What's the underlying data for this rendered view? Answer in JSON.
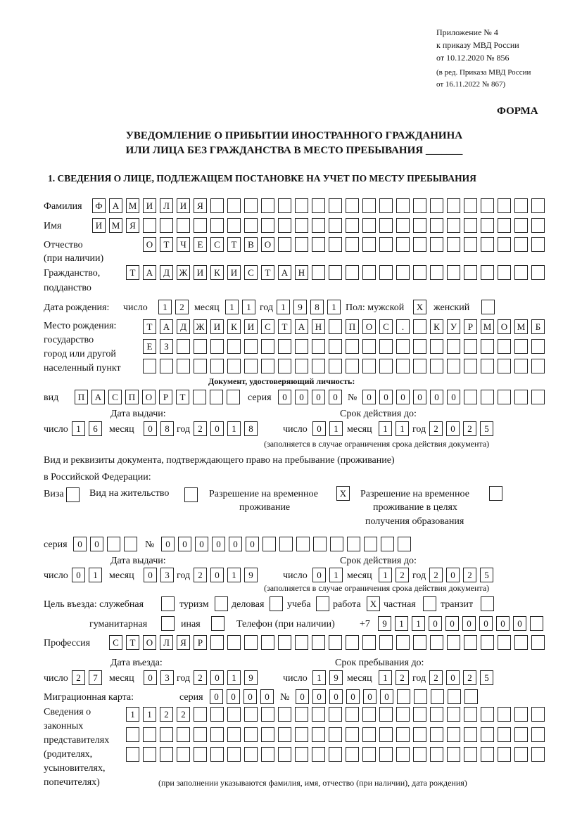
{
  "header": {
    "line1": "Приложение № 4",
    "line2": "к приказу МВД России",
    "line3": "от 10.12.2020 № 856",
    "line4": "(в ред. Приказа МВД России",
    "line5": "от 16.11.2022 № 867)",
    "forma": "ФОРМА",
    "title1": "УВЕДОМЛЕНИЕ О ПРИБЫТИИ ИНОСТРАННОГО ГРАЖДАНИНА",
    "title2": "ИЛИ ЛИЦА БЕЗ ГРАЖДАНСТВА В МЕСТО ПРЕБЫВАНИЯ _______",
    "section1": "1. СВЕДЕНИЯ О ЛИЦЕ, ПОДЛЕЖАЩЕМ ПОСТАНОВКЕ НА УЧЕТ ПО МЕСТУ ПРЕБЫВАНИЯ"
  },
  "labels": {
    "surname": "Фамилия",
    "name": "Имя",
    "patronymic": "Отчество",
    "patronymic2": "(при наличии)",
    "citizenship": "Гражданство,",
    "citizenship2": "подданство",
    "birth_date": "Дата рождения:",
    "day": "число",
    "month": "месяц",
    "year": "год",
    "sex": "Пол: мужской",
    "female": "женский",
    "birthplace1": "Место рождения:",
    "birthplace2": "государство",
    "birthplace3": "город или другой",
    "birthplace4": "населенный пункт",
    "id_doc": "Документ, удостоверяющий личность:",
    "kind": "вид",
    "series": "серия",
    "number": "№",
    "issue_date": "Дата выдачи:",
    "valid_until": "Срок действия до:",
    "validity_note": "(заполняется в случае ограничения срока действия документа)",
    "stay_doc1": "Вид и реквизиты документа, подтверждающего право на пребывание (проживание)",
    "stay_doc2": "в Российской Федерации:",
    "visa": "Виза",
    "residence": "Вид на жительство",
    "trp1": "Разрешение на временное",
    "trp2": "проживание",
    "trpe1": "Разрешение на временное",
    "trpe2": "проживание в целях",
    "trpe3": "получения образования",
    "purpose": "Цель въезда: служебная",
    "tourism": "туризм",
    "business": "деловая",
    "study": "учеба",
    "work": "работа",
    "private": "частная",
    "transit": "транзит",
    "humanitarian": "гуманитарная",
    "other": "иная",
    "phone": "Телефон (при наличии)",
    "phone_prefix": "+7",
    "profession": "Профессия",
    "entry_date": "Дата въезда:",
    "stay_until": "Срок пребывания до:",
    "migration_card": "Миграционная карта:",
    "reps1": "Сведения о",
    "reps2": "законных",
    "reps3": "представителях",
    "reps4": "(родителях,",
    "reps5": "усыновителях,",
    "reps6": "попечителях)",
    "reps_note": "(при заполнении указываются фамилия, имя, отчество (при наличии), дата рождения)"
  },
  "fields": {
    "surname": [
      "Ф",
      "А",
      "М",
      "И",
      "Л",
      "И",
      "Я",
      "",
      "",
      "",
      "",
      "",
      "",
      "",
      "",
      "",
      "",
      "",
      "",
      "",
      "",
      "",
      "",
      "",
      "",
      "",
      ""
    ],
    "name": [
      "И",
      "М",
      "Я",
      "",
      "",
      "",
      "",
      "",
      "",
      "",
      "",
      "",
      "",
      "",
      "",
      "",
      "",
      "",
      "",
      "",
      "",
      "",
      "",
      "",
      "",
      "",
      ""
    ],
    "patronymic": [
      "О",
      "Т",
      "Ч",
      "Е",
      "С",
      "Т",
      "В",
      "О",
      "",
      "",
      "",
      "",
      "",
      "",
      "",
      "",
      "",
      "",
      "",
      "",
      "",
      "",
      "",
      ""
    ],
    "citizenship": [
      "Т",
      "А",
      "Д",
      "Ж",
      "И",
      "К",
      "И",
      "С",
      "Т",
      "А",
      "Н",
      "",
      "",
      "",
      "",
      "",
      "",
      "",
      "",
      "",
      "",
      "",
      "",
      "",
      ""
    ],
    "birth_day": [
      "1",
      "2"
    ],
    "birth_month": [
      "1",
      "1"
    ],
    "birth_year": [
      "1",
      "9",
      "8",
      "1"
    ],
    "sex_male": [
      "X"
    ],
    "sex_female": [
      ""
    ],
    "birthplace1": [
      "Т",
      "А",
      "Д",
      "Ж",
      "И",
      "К",
      "И",
      "С",
      "Т",
      "А",
      "Н",
      "",
      "П",
      "О",
      "С",
      ".",
      "",
      "К",
      "У",
      "Р",
      "М",
      "О",
      "М",
      "Б"
    ],
    "birthplace2": [
      "Е",
      "З",
      "",
      "",
      "",
      "",
      "",
      "",
      "",
      "",
      "",
      "",
      "",
      "",
      "",
      "",
      "",
      "",
      "",
      "",
      "",
      "",
      "",
      ""
    ],
    "birthplace3": [
      "",
      "",
      "",
      "",
      "",
      "",
      "",
      "",
      "",
      "",
      "",
      "",
      "",
      "",
      "",
      "",
      "",
      "",
      "",
      "",
      "",
      "",
      "",
      ""
    ],
    "id_kind": [
      "П",
      "А",
      "С",
      "П",
      "О",
      "Р",
      "Т",
      "",
      "",
      ""
    ],
    "id_series": [
      "0",
      "0",
      "0",
      "0"
    ],
    "id_number": [
      "0",
      "0",
      "0",
      "0",
      "0",
      "0",
      "",
      "",
      "",
      "",
      ""
    ],
    "id_issue_day": [
      "1",
      "6"
    ],
    "id_issue_month": [
      "0",
      "8"
    ],
    "id_issue_year": [
      "2",
      "0",
      "1",
      "8"
    ],
    "id_valid_day": [
      "0",
      "1"
    ],
    "id_valid_month": [
      "1",
      "1"
    ],
    "id_valid_year": [
      "2",
      "0",
      "2",
      "5"
    ],
    "visa": [
      ""
    ],
    "residence": [
      ""
    ],
    "trp": [
      "X"
    ],
    "trpe": [
      ""
    ],
    "stay_series": [
      "0",
      "0",
      "",
      ""
    ],
    "stay_number": [
      "0",
      "0",
      "0",
      "0",
      "0",
      "0",
      "",
      "",
      "",
      "",
      "",
      "",
      "",
      "",
      ""
    ],
    "stay_issue_day": [
      "0",
      "1"
    ],
    "stay_issue_month": [
      "0",
      "3"
    ],
    "stay_issue_year": [
      "2",
      "0",
      "1",
      "9"
    ],
    "stay_valid_day": [
      "0",
      "1"
    ],
    "stay_valid_month": [
      "1",
      "2"
    ],
    "stay_valid_year": [
      "2",
      "0",
      "2",
      "5"
    ],
    "p_official": [
      ""
    ],
    "p_tourism": [
      ""
    ],
    "p_business": [
      ""
    ],
    "p_study": [
      ""
    ],
    "p_work": [
      "X"
    ],
    "p_private": [
      ""
    ],
    "p_transit": [
      ""
    ],
    "p_humanitarian": [
      ""
    ],
    "p_other": [
      ""
    ],
    "phone": [
      "9",
      "1",
      "1",
      "0",
      "0",
      "0",
      "0",
      "0",
      "0",
      ""
    ],
    "profession": [
      "С",
      "Т",
      "О",
      "Л",
      "Я",
      "Р",
      "",
      "",
      "",
      "",
      "",
      "",
      "",
      "",
      "",
      "",
      "",
      "",
      "",
      "",
      "",
      "",
      "",
      "",
      "",
      ""
    ],
    "entry_day": [
      "2",
      "7"
    ],
    "entry_month": [
      "0",
      "3"
    ],
    "entry_year": [
      "2",
      "0",
      "1",
      "9"
    ],
    "until_day": [
      "1",
      "9"
    ],
    "until_month": [
      "1",
      "2"
    ],
    "until_year": [
      "2",
      "0",
      "2",
      "5"
    ],
    "mc_series": [
      "0",
      "0",
      "0",
      "0"
    ],
    "mc_number": [
      "0",
      "0",
      "0",
      "0",
      "0",
      "0",
      "",
      "",
      "",
      "",
      ""
    ],
    "reps1": [
      "1",
      "1",
      "2",
      "2",
      "",
      "",
      "",
      "",
      "",
      "",
      "",
      "",
      "",
      "",
      "",
      "",
      "",
      "",
      "",
      "",
      "",
      "",
      "",
      "",
      ""
    ],
    "reps2": [
      "",
      "",
      "",
      "",
      "",
      "",
      "",
      "",
      "",
      "",
      "",
      "",
      "",
      "",
      "",
      "",
      "",
      "",
      "",
      "",
      "",
      "",
      "",
      "",
      ""
    ],
    "reps3": [
      "",
      "",
      "",
      "",
      "",
      "",
      "",
      "",
      "",
      "",
      "",
      "",
      "",
      "",
      "",
      "",
      "",
      "",
      "",
      "",
      "",
      "",
      "",
      "",
      ""
    ]
  }
}
